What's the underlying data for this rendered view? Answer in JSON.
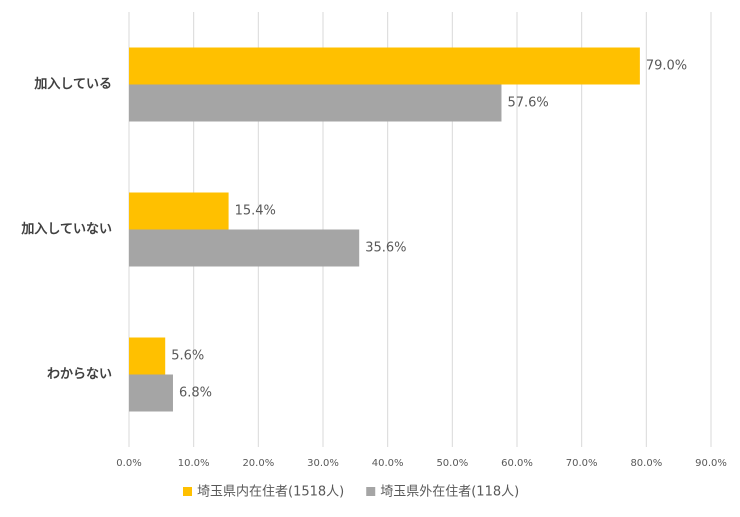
{
  "chart_data": {
    "type": "hbar",
    "categories": [
      "加入している",
      "加入していない",
      "わからない"
    ],
    "series": [
      {
        "name": "埼玉県内在住者(1518人)",
        "color": "#FFC000",
        "values": [
          79.0,
          15.4,
          5.6
        ],
        "value_labels": [
          "79.0%",
          "15.4%",
          "5.6%"
        ]
      },
      {
        "name": "埼玉県外在住者(118人)",
        "color": "#A5A5A5",
        "values": [
          57.6,
          35.6,
          6.8
        ],
        "value_labels": [
          "57.6%",
          "35.6%",
          "6.8%"
        ]
      }
    ],
    "xlim": [
      0,
      90
    ],
    "xticks": [
      {
        "value": 0,
        "label": "0.0%"
      },
      {
        "value": 10,
        "label": "10.0%"
      },
      {
        "value": 20,
        "label": "20.0%"
      },
      {
        "value": 30,
        "label": "30.0%"
      },
      {
        "value": 40,
        "label": "40.0%"
      },
      {
        "value": 50,
        "label": "50.0%"
      },
      {
        "value": 60,
        "label": "60.0%"
      },
      {
        "value": 70,
        "label": "70.0%"
      },
      {
        "value": 80,
        "label": "80.0%"
      },
      {
        "value": 90,
        "label": "90.0%"
      }
    ],
    "grid": true,
    "legend": "bottom"
  }
}
